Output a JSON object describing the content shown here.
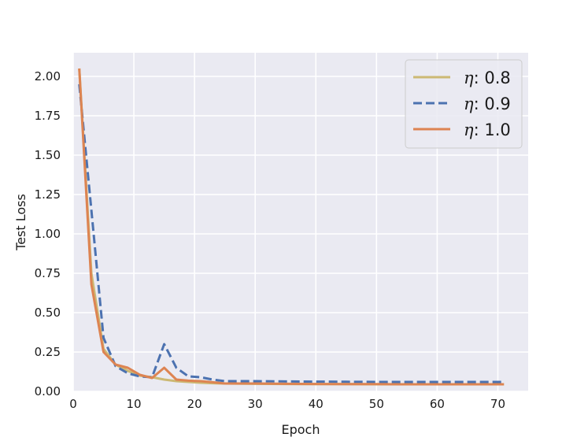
{
  "chart_data": {
    "type": "line",
    "title": "",
    "xlabel": "Epoch",
    "ylabel": "Test Loss",
    "xlim": [
      0,
      75
    ],
    "ylim": [
      0,
      2.15
    ],
    "xticks": [
      0,
      10,
      20,
      30,
      40,
      50,
      60,
      70
    ],
    "xtick_labels": [
      "0",
      "10",
      "20",
      "30",
      "40",
      "50",
      "60",
      "70"
    ],
    "yticks": [
      0,
      0.25,
      0.5,
      0.75,
      1.0,
      1.25,
      1.5,
      1.75,
      2.0
    ],
    "ytick_labels": [
      "0.00",
      "0.25",
      "0.50",
      "0.75",
      "1.00",
      "1.25",
      "1.50",
      "1.75",
      "2.00"
    ],
    "grid": true,
    "legend_position": "top-right",
    "series": [
      {
        "name": "0.8",
        "legend_symbol": "η",
        "color": "#ccb974",
        "dash": "solid",
        "x": [
          1,
          3,
          5,
          7,
          9,
          11,
          13,
          15,
          17,
          19,
          21,
          23,
          25,
          30,
          35,
          40,
          45,
          50,
          55,
          60,
          65,
          71
        ],
        "y": [
          2.05,
          0.75,
          0.27,
          0.17,
          0.13,
          0.1,
          0.09,
          0.075,
          0.065,
          0.06,
          0.055,
          0.052,
          0.05,
          0.048,
          0.047,
          0.046,
          0.046,
          0.045,
          0.045,
          0.045,
          0.045,
          0.045
        ]
      },
      {
        "name": "0.9",
        "legend_symbol": "η",
        "color": "#4c72b0",
        "dash": "dashed",
        "x": [
          1,
          3,
          5,
          7,
          9,
          11,
          13,
          15,
          17,
          19,
          21,
          23,
          25,
          30,
          35,
          40,
          45,
          50,
          55,
          60,
          65,
          71
        ],
        "y": [
          1.95,
          1.15,
          0.34,
          0.16,
          0.115,
          0.095,
          0.09,
          0.3,
          0.15,
          0.095,
          0.09,
          0.075,
          0.065,
          0.065,
          0.063,
          0.062,
          0.061,
          0.06,
          0.06,
          0.06,
          0.06,
          0.06
        ]
      },
      {
        "name": "1.0",
        "legend_symbol": "η",
        "color": "#dd8452",
        "dash": "solid",
        "x": [
          1,
          3,
          5,
          7,
          9,
          11,
          13,
          15,
          17,
          19,
          21,
          23,
          25,
          30,
          35,
          40,
          45,
          50,
          55,
          60,
          65,
          71
        ],
        "y": [
          2.05,
          0.68,
          0.25,
          0.17,
          0.15,
          0.105,
          0.085,
          0.15,
          0.075,
          0.068,
          0.065,
          0.058,
          0.05,
          0.05,
          0.048,
          0.047,
          0.046,
          0.046,
          0.045,
          0.045,
          0.045,
          0.045
        ]
      }
    ]
  }
}
